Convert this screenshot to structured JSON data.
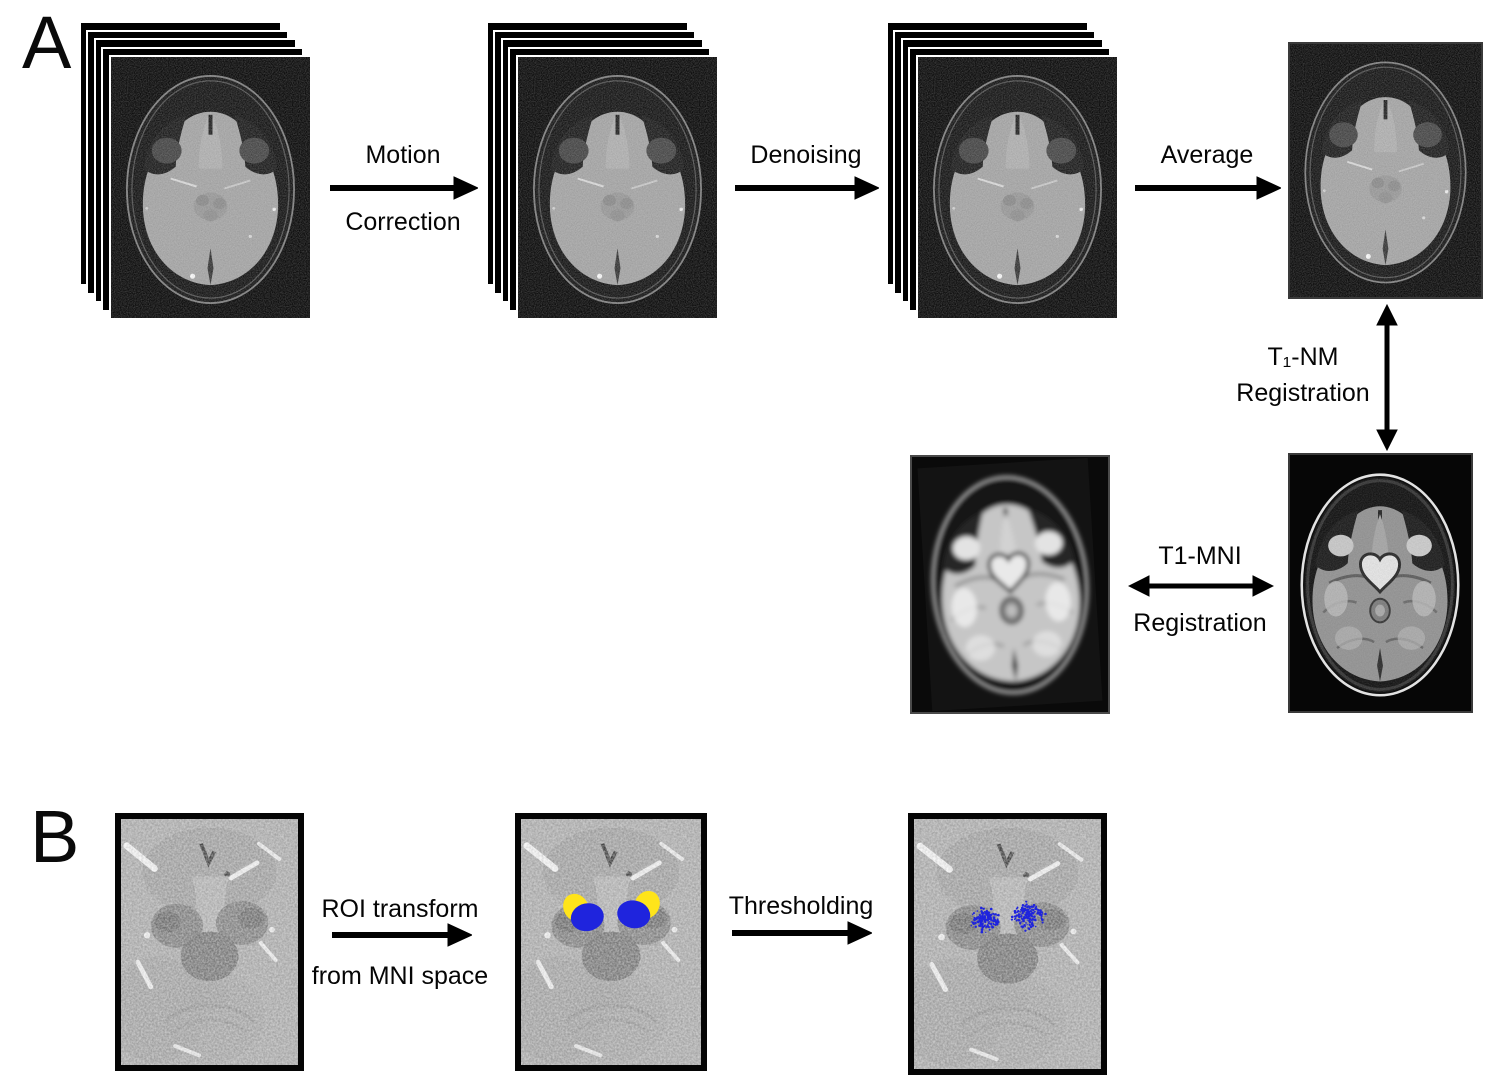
{
  "figure": {
    "panel_a_label": "A",
    "panel_b_label": "B"
  },
  "panel_a": {
    "step1_line1": "Motion",
    "step1_line2": "Correction",
    "step2_label": "Denoising",
    "step3_label": "Average",
    "t1nm_label_line1": "T₁-NM",
    "t1nm_label_line2": "Registration",
    "t1mni_label_line1": "T1-MNI",
    "t1mni_label_line2": "Registration"
  },
  "panel_b": {
    "step1_line1": "ROI transform",
    "step1_line2": "from MNI space",
    "step2_label": "Thresholding"
  },
  "colors": {
    "arrow": "#000000",
    "roi_blue": "#1f24dd",
    "roi_yellow": "#ffe41a"
  }
}
